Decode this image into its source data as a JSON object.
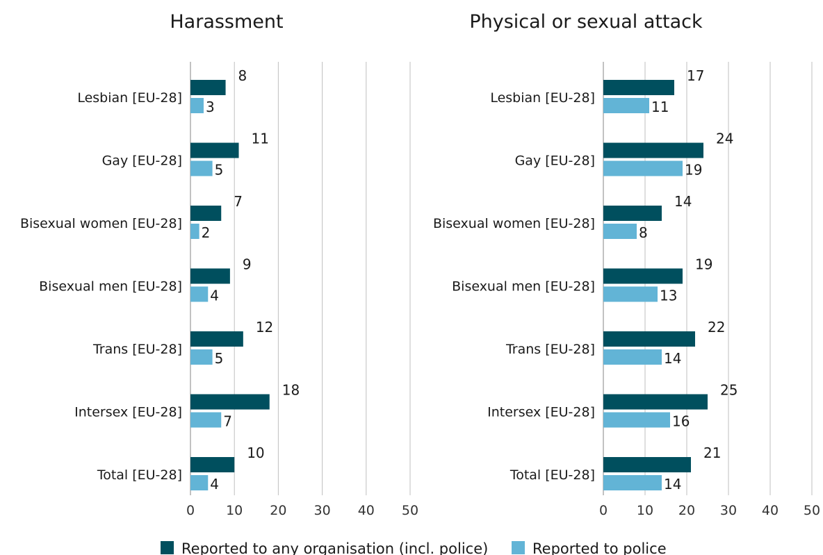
{
  "chart_data": [
    {
      "type": "bar",
      "orientation": "horizontal",
      "title": "Harassment",
      "categories": [
        "Lesbian [EU-28]",
        "Gay [EU-28]",
        "Bisexual women [EU-28]",
        "Bisexual men [EU-28]",
        "Trans [EU-28]",
        "Intersex [EU-28]",
        "Total [EU-28]"
      ],
      "series": [
        {
          "name": "Reported to any organisation (incl. police)",
          "values": [
            8,
            11,
            7,
            9,
            12,
            18,
            10
          ],
          "color": "#004f5e"
        },
        {
          "name": "Reported to police",
          "values": [
            3,
            5,
            2,
            4,
            5,
            7,
            4
          ],
          "color": "#62b4d6"
        }
      ],
      "xlim": [
        0,
        50
      ],
      "xticks": [
        0,
        10,
        20,
        30,
        40,
        50
      ],
      "grid": true
    },
    {
      "type": "bar",
      "orientation": "horizontal",
      "title": "Physical or sexual attack",
      "categories": [
        "Lesbian [EU-28]",
        "Gay [EU-28]",
        "Bisexual women [EU-28]",
        "Bisexual men [EU-28]",
        "Trans [EU-28]",
        "Intersex [EU-28]",
        "Total [EU-28]"
      ],
      "series": [
        {
          "name": "Reported to any organisation (incl. police)",
          "values": [
            17,
            24,
            14,
            19,
            22,
            25,
            21
          ],
          "color": "#004f5e"
        },
        {
          "name": "Reported to police",
          "values": [
            11,
            19,
            8,
            13,
            14,
            16,
            14
          ],
          "color": "#62b4d6"
        }
      ],
      "xlim": [
        0,
        50
      ],
      "xticks": [
        0,
        10,
        20,
        30,
        40,
        50
      ],
      "grid": true
    }
  ],
  "legend": {
    "placement": "bottom",
    "items": [
      {
        "label": "Reported to any organisation (incl. police)",
        "color": "#004f5e"
      },
      {
        "label": "Reported to police",
        "color": "#62b4d6"
      }
    ]
  }
}
